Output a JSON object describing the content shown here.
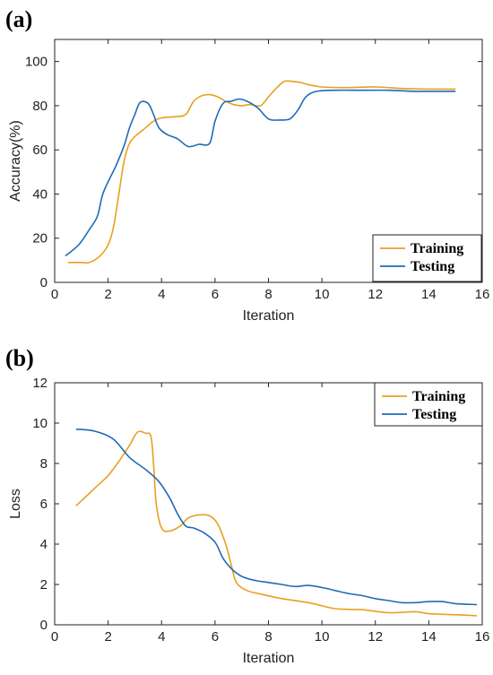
{
  "chart_data": [
    {
      "type": "line",
      "panel_label": "(a)",
      "xlabel": "Iteration",
      "ylabel": "Accuracy(%)",
      "xlim": [
        0,
        16
      ],
      "ylim": [
        0,
        110
      ],
      "xticks": [
        0,
        2,
        4,
        6,
        8,
        10,
        12,
        14,
        16
      ],
      "yticks": [
        0,
        20,
        40,
        60,
        80,
        100
      ],
      "grid": false,
      "legend_position": "bottom-right",
      "series": [
        {
          "name": "Training",
          "color": "#E8A020",
          "x": [
            0.5,
            1.0,
            1.3,
            1.7,
            2.0,
            2.2,
            2.4,
            2.6,
            2.8,
            3.0,
            3.3,
            3.7,
            4.0,
            4.5,
            4.9,
            5.2,
            5.5,
            5.8,
            6.1,
            6.4,
            6.7,
            7.0,
            7.3,
            7.7,
            8.0,
            8.3,
            8.6,
            8.9,
            9.2,
            9.5,
            10.0,
            11.0,
            12.0,
            13.0,
            14.0,
            15.0
          ],
          "y": [
            9,
            9,
            9,
            12,
            17,
            25,
            40,
            55,
            63,
            66,
            69,
            73,
            74.5,
            75,
            76,
            82,
            84.5,
            85,
            84,
            82,
            80.5,
            80,
            80.5,
            80,
            84,
            88,
            91,
            91,
            90.5,
            89.5,
            88.5,
            88.2,
            88.5,
            87.8,
            87.5,
            87.5
          ]
        },
        {
          "name": "Testing",
          "color": "#1F6BB5",
          "x": [
            0.4,
            0.9,
            1.3,
            1.6,
            1.8,
            2.1,
            2.3,
            2.6,
            2.8,
            3.0,
            3.2,
            3.5,
            3.7,
            3.9,
            4.2,
            4.6,
            5.0,
            5.4,
            5.8,
            6.0,
            6.3,
            6.6,
            6.9,
            7.2,
            7.6,
            8.0,
            8.4,
            8.8,
            9.1,
            9.4,
            9.8,
            10.5,
            11.5,
            12.5,
            13.5,
            15.0
          ],
          "y": [
            12,
            17,
            24,
            30,
            40,
            48,
            53,
            62,
            70,
            76,
            81.5,
            81,
            76,
            70,
            67,
            65,
            61.5,
            62.5,
            63,
            73,
            81,
            82,
            83,
            82,
            79,
            74,
            73.5,
            74,
            78,
            84,
            86.5,
            87,
            87,
            87,
            86.5,
            86.5
          ]
        }
      ]
    },
    {
      "type": "line",
      "panel_label": "(b)",
      "xlabel": "Iteration",
      "ylabel": "Loss",
      "xlim": [
        0,
        16
      ],
      "ylim": [
        0,
        12
      ],
      "xticks": [
        0,
        2,
        4,
        6,
        8,
        10,
        12,
        14,
        16
      ],
      "yticks": [
        0,
        2,
        4,
        6,
        8,
        10,
        12
      ],
      "grid": false,
      "legend_position": "top-right",
      "series": [
        {
          "name": "Training",
          "color": "#E8A020",
          "x": [
            0.8,
            1.2,
            1.6,
            2.0,
            2.4,
            2.8,
            3.1,
            3.4,
            3.6,
            3.7,
            3.8,
            4.0,
            4.3,
            4.7,
            5.0,
            5.4,
            5.8,
            6.1,
            6.4,
            6.6,
            6.8,
            7.2,
            7.8,
            8.5,
            9.5,
            10.5,
            11.5,
            12.5,
            13.5,
            14.0,
            15.0,
            15.8
          ],
          "y": [
            5.9,
            6.4,
            6.9,
            7.4,
            8.1,
            8.9,
            9.55,
            9.5,
            9.35,
            8.0,
            6.0,
            4.8,
            4.65,
            4.9,
            5.3,
            5.45,
            5.4,
            5.0,
            4.0,
            3.0,
            2.1,
            1.7,
            1.5,
            1.3,
            1.1,
            0.8,
            0.75,
            0.6,
            0.65,
            0.55,
            0.5,
            0.45
          ]
        },
        {
          "name": "Testing",
          "color": "#1F6BB5",
          "x": [
            0.8,
            1.5,
            2.2,
            2.8,
            3.4,
            3.9,
            4.3,
            4.6,
            4.9,
            5.2,
            5.6,
            6.0,
            6.3,
            6.6,
            7.0,
            7.5,
            8.0,
            8.5,
            9.0,
            9.5,
            10.0,
            10.5,
            11.0,
            11.5,
            12.0,
            12.5,
            13.0,
            13.5,
            14.0,
            14.5,
            15.0,
            15.8
          ],
          "y": [
            9.7,
            9.6,
            9.2,
            8.3,
            7.7,
            7.1,
            6.3,
            5.5,
            4.9,
            4.8,
            4.55,
            4.1,
            3.3,
            2.8,
            2.4,
            2.2,
            2.1,
            2.0,
            1.9,
            1.95,
            1.85,
            1.7,
            1.55,
            1.45,
            1.3,
            1.2,
            1.1,
            1.1,
            1.15,
            1.15,
            1.05,
            1.0
          ]
        }
      ]
    }
  ]
}
